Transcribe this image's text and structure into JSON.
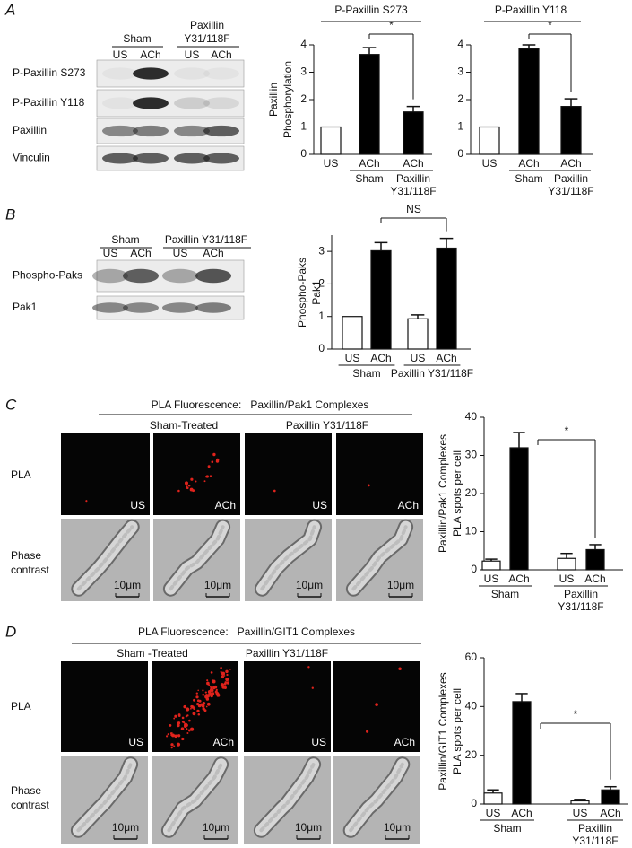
{
  "figure": {
    "panels": [
      {
        "letter": "A",
        "blot": {
          "groups": [
            [
              "Sham"
            ],
            [
              "Paxillin",
              "Y31/118F"
            ]
          ],
          "lanes": [
            "US",
            "ACh",
            "US",
            "ACh"
          ],
          "rows": [
            "P-Paxillin S273",
            "P-Paxillin Y118",
            "Paxillin",
            "Vinculin"
          ]
        }
      },
      {
        "letter": "B",
        "blot": {
          "groups": [
            [
              "Sham"
            ],
            [
              "Paxillin Y31/118F"
            ]
          ],
          "lanes": [
            "US",
            "ACh",
            "US",
            "ACh"
          ],
          "rows": [
            "Phospho-Paks",
            "Pak1"
          ]
        }
      },
      {
        "letter": "C",
        "images": {
          "header": "PLA Fluorescence:   Paxillin/Pak1 Complexes",
          "groups": [
            "Sham-Treated",
            "Paxillin Y31/118F"
          ],
          "lanes": [
            "US",
            "ACh",
            "US",
            "ACh"
          ],
          "rows": [
            "PLA",
            "Phase contrast"
          ],
          "scale_bar": "10μm"
        }
      },
      {
        "letter": "D",
        "images": {
          "header": "PLA Fluorescence:   Paxillin/GIT1 Complexes",
          "groups": [
            "Sham -Treated",
            "Paxillin Y31/118F"
          ],
          "lanes": [
            "US",
            "ACh",
            "US",
            "ACh"
          ],
          "rows": [
            "PLA",
            "Phase contrast"
          ],
          "scale_bar": "10μm"
        }
      }
    ]
  },
  "chart_data": [
    {
      "type": "bar",
      "title": "P-Paxillin S273",
      "ylabel": [
        "Paxillin",
        "Phosphorylation"
      ],
      "categories": [
        "US",
        "ACh",
        "ACh"
      ],
      "sublabels": [
        null,
        [
          "Sham"
        ],
        [
          "Paxillin",
          "Y31/118F"
        ]
      ],
      "values": [
        1,
        3.65,
        1.55
      ],
      "errors": [
        null,
        0.25,
        0.2
      ],
      "colors": [
        "#ffffff",
        "#000000",
        "#000000"
      ],
      "ylim": [
        0,
        4
      ],
      "yticks": [
        0,
        1,
        2,
        3,
        4
      ],
      "significance": "*"
    },
    {
      "type": "bar",
      "title": "P-Paxillin Y118",
      "categories": [
        "US",
        "ACh",
        "ACh"
      ],
      "sublabels": [
        null,
        [
          "Sham"
        ],
        [
          "Paxillin",
          "Y31/118F"
        ]
      ],
      "values": [
        1,
        3.85,
        1.75
      ],
      "errors": [
        null,
        0.15,
        0.28
      ],
      "colors": [
        "#ffffff",
        "#000000",
        "#000000"
      ],
      "ylim": [
        0,
        4
      ],
      "yticks": [
        0,
        1,
        2,
        3,
        4
      ],
      "significance": "*"
    },
    {
      "type": "bar",
      "ylabel": [
        "Phospho-Paks",
        "Pak1"
      ],
      "categories": [
        "US",
        "ACh",
        "US",
        "ACh"
      ],
      "groups": [
        [
          "Sham"
        ],
        [
          "Paxillin Y31/118F"
        ]
      ],
      "values": [
        1,
        3.02,
        0.93,
        3.1
      ],
      "errors": [
        null,
        0.25,
        0.12,
        0.3
      ],
      "colors": [
        "#ffffff",
        "#000000",
        "#ffffff",
        "#000000"
      ],
      "ylim": [
        0,
        3.5
      ],
      "yticks": [
        0,
        1,
        2,
        3
      ],
      "significance": "NS"
    },
    {
      "type": "bar",
      "ylabel": [
        "Paxillin/Pak1 Complexes",
        "PLA spots per cell"
      ],
      "categories": [
        "US",
        "ACh",
        "US",
        "ACh"
      ],
      "groups": [
        [
          "Sham"
        ],
        [
          "Paxillin",
          "Y31/118F"
        ]
      ],
      "values": [
        2.3,
        32,
        3,
        5.3
      ],
      "errors": [
        0.5,
        4,
        1.3,
        1.3
      ],
      "colors": [
        "#ffffff",
        "#000000",
        "#ffffff",
        "#000000"
      ],
      "ylim": [
        0,
        40
      ],
      "yticks": [
        0,
        10,
        20,
        30,
        40
      ],
      "significance": "*"
    },
    {
      "type": "bar",
      "ylabel": [
        "Paxillin/GIT1 Complexes",
        "PLA spots per cell"
      ],
      "categories": [
        "US",
        "ACh",
        "US",
        "ACh"
      ],
      "groups": [
        [
          "Sham"
        ],
        [
          "Paxillin",
          "Y31/118F"
        ]
      ],
      "values": [
        4.5,
        42,
        1.3,
        5.8
      ],
      "errors": [
        1.3,
        3.3,
        0.6,
        1.3
      ],
      "colors": [
        "#ffffff",
        "#000000",
        "#ffffff",
        "#000000"
      ],
      "ylim": [
        0,
        60
      ],
      "yticks": [
        0,
        20,
        40,
        60
      ],
      "significance": "*"
    }
  ]
}
